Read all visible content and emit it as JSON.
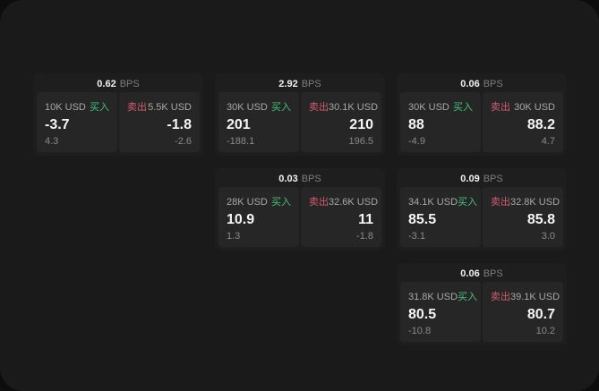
{
  "labels": {
    "bps_unit": "BPS",
    "buy": "买入",
    "sell": "卖出"
  },
  "colors": {
    "buy": "#44c17e",
    "sell": "#d25b6f"
  },
  "cards": [
    {
      "bps": "0.62",
      "row": 1,
      "col": 1,
      "buy": {
        "size": "10K USD",
        "value": "-3.7",
        "delta": "4.3"
      },
      "sell": {
        "size": "5.5K USD",
        "value": "-1.8",
        "delta": "-2.6"
      }
    },
    {
      "bps": "2.92",
      "row": 1,
      "col": 2,
      "buy": {
        "size": "30K USD",
        "value": "201",
        "delta": "-188.1"
      },
      "sell": {
        "size": "30.1K USD",
        "value": "210",
        "delta": "196.5"
      }
    },
    {
      "bps": "0.06",
      "row": 1,
      "col": 3,
      "buy": {
        "size": "30K USD",
        "value": "88",
        "delta": "-4.9"
      },
      "sell": {
        "size": "30K USD",
        "value": "88.2",
        "delta": "4.7"
      }
    },
    {
      "bps": "0.03",
      "row": 2,
      "col": 2,
      "buy": {
        "size": "28K USD",
        "value": "10.9",
        "delta": "1.3"
      },
      "sell": {
        "size": "32.6K USD",
        "value": "11",
        "delta": "-1.8"
      }
    },
    {
      "bps": "0.09",
      "row": 2,
      "col": 3,
      "buy": {
        "size": "34.1K USD",
        "value": "85.5",
        "delta": "-3.1"
      },
      "sell": {
        "size": "32.8K USD",
        "value": "85.8",
        "delta": "3.0"
      }
    },
    {
      "bps": "0.06",
      "row": 3,
      "col": 3,
      "buy": {
        "size": "31.8K USD",
        "value": "80.5",
        "delta": "-10.8"
      },
      "sell": {
        "size": "39.1K USD",
        "value": "80.7",
        "delta": "10.2"
      }
    }
  ]
}
